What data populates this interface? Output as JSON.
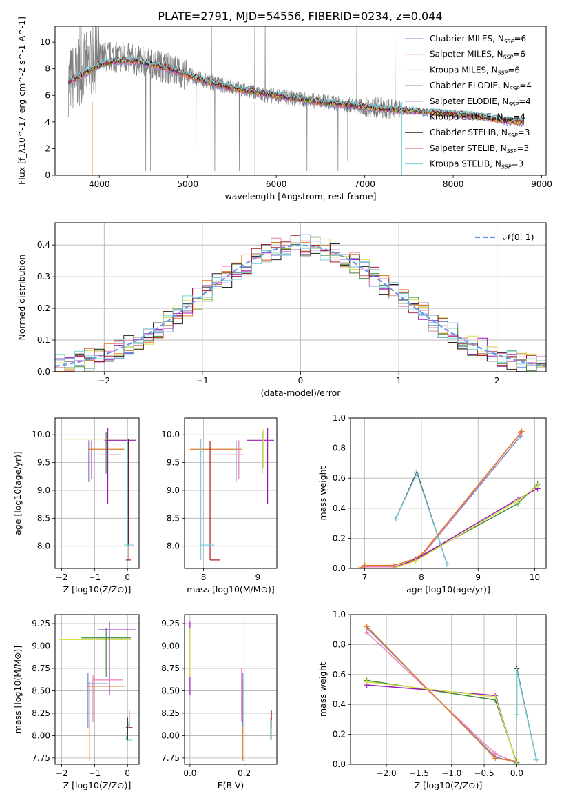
{
  "title": "PLATE=2791, MJD=54556, FIBERID=0234, z=0.044",
  "colors": {
    "model_colors": [
      "#6a8cd8",
      "#f07cb4",
      "#e07a22",
      "#3c8c3c",
      "#9a1bb8",
      "#d8e04a",
      "#222222",
      "#a81e1e",
      "#7ad0d8"
    ],
    "data": "#808080",
    "gaussian": "#6495ED",
    "grid": "#b0b0b0"
  },
  "legend": [
    {
      "name": "Chabrier MILES",
      "nssp": "6"
    },
    {
      "name": "Salpeter MILES",
      "nssp": "6"
    },
    {
      "name": "Kroupa MILES",
      "nssp": "6"
    },
    {
      "name": "Chabrier ELODIE",
      "nssp": "4"
    },
    {
      "name": "Salpeter ELODIE",
      "nssp": "4"
    },
    {
      "name": "Kroupa ELODIE",
      "nssp": "4"
    },
    {
      "name": "Chabrier STELIB",
      "nssp": "3"
    },
    {
      "name": "Salpeter STELIB",
      "nssp": "3"
    },
    {
      "name": "Kroupa STELIB",
      "nssp": "3"
    }
  ],
  "chart_data": [
    {
      "id": "spectrum",
      "type": "line",
      "xlabel": "wavelength [Angstrom, rest frame]",
      "ylabel": "Flux [f_λ10^-17 erg cm^-2 s^-1 A^-1]",
      "xlim": [
        3500,
        9050
      ],
      "ylim": [
        0,
        11.2
      ],
      "xticks": [
        4000,
        5000,
        6000,
        7000,
        8000,
        9000
      ],
      "yticks": [
        0,
        2,
        4,
        6,
        8,
        10
      ],
      "grid": false,
      "legend_position": "upper right",
      "spectrum_x": [
        3650,
        3750,
        3850,
        3950,
        4050,
        4150,
        4300,
        4500,
        4700,
        4900,
        5100,
        5300,
        5500,
        5700,
        5900,
        6100,
        6300,
        6500,
        6700,
        6900,
        7100,
        7300,
        7420
      ],
      "spectrum_y": [
        7.0,
        7.6,
        8.2,
        8.7,
        8.9,
        8.9,
        8.8,
        8.5,
        8.2,
        7.8,
        7.3,
        6.9,
        6.6,
        6.3,
        6.0,
        5.9,
        5.7,
        5.5,
        5.4,
        5.2,
        5.1,
        5.0,
        4.9
      ],
      "model_x": [
        3650,
        3800,
        4000,
        4200,
        4400,
        4600,
        4800,
        5000,
        5200,
        5400,
        5600,
        5800,
        6000,
        6200,
        6400,
        6600,
        6800,
        7000,
        7200,
        7400,
        7600,
        7800,
        8000,
        8200,
        8400,
        8600,
        8800
      ],
      "model_y": [
        7.0,
        7.5,
        8.3,
        8.6,
        8.6,
        8.3,
        8.0,
        7.5,
        7.1,
        6.7,
        6.4,
        6.2,
        6.0,
        5.8,
        5.6,
        5.4,
        5.3,
        5.1,
        5.0,
        4.9,
        4.8,
        4.7,
        4.6,
        4.5,
        4.3,
        4.1,
        4.0
      ]
    },
    {
      "id": "residuals",
      "type": "line",
      "xlabel": "(data-model)/error",
      "ylabel": "Normed distribution",
      "xlim": [
        -2.5,
        2.5
      ],
      "ylim": [
        0,
        0.47
      ],
      "xticks": [
        -2,
        -1,
        0,
        1,
        2
      ],
      "yticks": [
        0.0,
        0.1,
        0.2,
        0.3,
        0.4
      ],
      "grid": true,
      "legend_position": "upper right",
      "gaussian_label": "𝒩(0, 1)",
      "bin_width": 0.1
    },
    {
      "id": "age_vs_Z",
      "type": "scatter",
      "xlabel": "Z [log10(Z/Z⊙)]",
      "ylabel": "age  [log10(age/yr)]",
      "xlim": [
        -2.2,
        0.35
      ],
      "ylim": [
        7.6,
        10.3
      ],
      "xticks": [
        -2,
        -1,
        0
      ],
      "yticks": [
        8.0,
        8.5,
        9.0,
        9.5,
        10.0
      ],
      "grid": true,
      "segments": [
        {
          "c": 0,
          "x": [
            -1.18,
            -1.18
          ],
          "y": [
            9.15,
            9.9
          ]
        },
        {
          "c": 1,
          "x": [
            -1.1,
            -1.1
          ],
          "y": [
            9.2,
            9.9
          ]
        },
        {
          "c": 2,
          "x": [
            -1.2,
            -0.1
          ],
          "y": [
            9.74,
            9.74
          ]
        },
        {
          "c": 3,
          "x": [
            -0.65,
            -0.65
          ],
          "y": [
            9.3,
            10.05
          ]
        },
        {
          "c": 4,
          "x": [
            -0.6,
            -0.6
          ],
          "y": [
            8.75,
            10.12
          ]
        },
        {
          "c": 4,
          "x": [
            -0.7,
            0.25
          ],
          "y": [
            9.9,
            9.9
          ]
        },
        {
          "c": 5,
          "x": [
            -2.1,
            0.3
          ],
          "y": [
            9.92,
            9.92
          ]
        },
        {
          "c": 0,
          "x": [
            -0.7,
            -0.2
          ],
          "y": [
            9.64,
            9.64
          ]
        },
        {
          "c": 1,
          "x": [
            -0.85,
            -0.2
          ],
          "y": [
            9.64,
            9.64
          ]
        },
        {
          "c": 6,
          "x": [
            0.02,
            0.02
          ],
          "y": [
            8.0,
            9.92
          ]
        },
        {
          "c": 7,
          "x": [
            -0.05,
            0.1
          ],
          "y": [
            7.75,
            7.75
          ]
        },
        {
          "c": 7,
          "x": [
            0.04,
            0.04
          ],
          "y": [
            7.75,
            9.92
          ]
        },
        {
          "c": 8,
          "x": [
            0.0,
            0.0
          ],
          "y": [
            8.0,
            9.92
          ]
        },
        {
          "c": 8,
          "x": [
            -0.1,
            0.2
          ],
          "y": [
            8.02,
            8.02
          ]
        }
      ]
    },
    {
      "id": "age_vs_mass",
      "type": "scatter",
      "xlabel": "mass [log10(M/M⊙)]",
      "ylabel": "",
      "xlim": [
        7.65,
        9.35
      ],
      "ylim": [
        7.6,
        10.3
      ],
      "xticks": [
        8,
        9
      ],
      "yticks": [
        8.0,
        8.5,
        9.0,
        9.5,
        10.0
      ],
      "grid": true,
      "segments": [
        {
          "c": 2,
          "x": [
            7.75,
            8.7
          ],
          "y": [
            9.74,
            9.74
          ]
        },
        {
          "c": 7,
          "x": [
            8.12,
            8.12
          ],
          "y": [
            7.75,
            9.88
          ]
        },
        {
          "c": 7,
          "x": [
            8.12,
            8.3
          ],
          "y": [
            7.75,
            7.75
          ]
        },
        {
          "c": 8,
          "x": [
            7.95,
            7.95
          ],
          "y": [
            7.75,
            9.92
          ]
        },
        {
          "c": 8,
          "x": [
            7.95,
            8.2
          ],
          "y": [
            8.02,
            8.02
          ]
        },
        {
          "c": 1,
          "x": [
            8.15,
            8.75
          ],
          "y": [
            9.64,
            9.64
          ]
        },
        {
          "c": 0,
          "x": [
            8.6,
            8.6
          ],
          "y": [
            9.15,
            9.88
          ]
        },
        {
          "c": 1,
          "x": [
            8.65,
            8.65
          ],
          "y": [
            9.2,
            9.9
          ]
        },
        {
          "c": 4,
          "x": [
            8.8,
            9.3
          ],
          "y": [
            9.9,
            9.9
          ]
        },
        {
          "c": 4,
          "x": [
            9.18,
            9.18
          ],
          "y": [
            8.75,
            10.12
          ]
        },
        {
          "c": 3,
          "x": [
            9.08,
            9.08
          ],
          "y": [
            9.3,
            10.05
          ]
        },
        {
          "c": 5,
          "x": [
            9.1,
            9.1
          ],
          "y": [
            9.4,
            10.1
          ]
        }
      ]
    },
    {
      "id": "mass_weight_vs_age",
      "type": "line",
      "xlabel": "age  [log10(age/yr)]",
      "ylabel": "mass weight",
      "xlim": [
        6.75,
        10.2
      ],
      "ylim": [
        0,
        1.0
      ],
      "xticks": [
        7,
        8,
        9,
        10
      ],
      "yticks": [
        0.0,
        0.2,
        0.4,
        0.6,
        0.8,
        1.0
      ],
      "grid": true,
      "series": [
        {
          "c": 0,
          "x": [
            6.9,
            7.0,
            7.5,
            7.8,
            8.0,
            9.75
          ],
          "y": [
            0.0,
            0.01,
            0.01,
            0.04,
            0.08,
            0.88
          ]
        },
        {
          "c": 1,
          "x": [
            6.9,
            7.0,
            7.5,
            7.8,
            8.0,
            9.75
          ],
          "y": [
            0.0,
            0.01,
            0.01,
            0.04,
            0.08,
            0.9
          ]
        },
        {
          "c": 2,
          "x": [
            6.9,
            7.0,
            7.5,
            7.8,
            8.0,
            9.77
          ],
          "y": [
            0.0,
            0.02,
            0.02,
            0.05,
            0.09,
            0.91
          ]
        },
        {
          "c": 3,
          "x": [
            6.9,
            7.5,
            7.9,
            9.7,
            10.05
          ],
          "y": [
            0.0,
            0.0,
            0.06,
            0.43,
            0.56
          ]
        },
        {
          "c": 4,
          "x": [
            6.9,
            7.5,
            7.9,
            9.7,
            10.05
          ],
          "y": [
            0.0,
            0.0,
            0.06,
            0.46,
            0.53
          ]
        },
        {
          "c": 5,
          "x": [
            6.9,
            7.5,
            7.9,
            9.7,
            10.05
          ],
          "y": [
            0.0,
            0.0,
            0.05,
            0.45,
            0.55
          ]
        },
        {
          "c": 6,
          "x": [
            7.55,
            7.92,
            8.45
          ],
          "y": [
            0.33,
            0.64,
            0.03
          ]
        },
        {
          "c": 8,
          "x": [
            7.55,
            7.92,
            8.45
          ],
          "y": [
            0.33,
            0.63,
            0.03
          ]
        }
      ]
    },
    {
      "id": "mass_vs_Z",
      "type": "scatter",
      "xlabel": "Z [log10(Z/Z⊙)]",
      "ylabel": "mass [log10(M/M⊙)]",
      "xlim": [
        -2.2,
        0.35
      ],
      "ylim": [
        7.68,
        9.35
      ],
      "xticks": [
        -2,
        -1,
        0
      ],
      "yticks": [
        7.75,
        8.0,
        8.25,
        8.5,
        8.75,
        9.0,
        9.25
      ],
      "grid": true,
      "segments": [
        {
          "c": 5,
          "x": [
            -2.1,
            0.1
          ],
          "y": [
            9.07,
            9.07
          ]
        },
        {
          "c": 3,
          "x": [
            -1.4,
            0.1
          ],
          "y": [
            9.09,
            9.09
          ]
        },
        {
          "c": 4,
          "x": [
            -0.9,
            0.25
          ],
          "y": [
            9.18,
            9.18
          ]
        },
        {
          "c": 4,
          "x": [
            -0.55,
            -0.55
          ],
          "y": [
            8.45,
            9.27
          ]
        },
        {
          "c": 3,
          "x": [
            -0.65,
            -0.65
          ],
          "y": [
            8.65,
            9.2
          ]
        },
        {
          "c": 0,
          "x": [
            -1.25,
            -0.6
          ],
          "y": [
            8.58,
            8.58
          ]
        },
        {
          "c": 0,
          "x": [
            -1.2,
            -1.2
          ],
          "y": [
            8.08,
            8.7
          ]
        },
        {
          "c": 1,
          "x": [
            -1.05,
            -0.15
          ],
          "y": [
            8.62,
            8.62
          ]
        },
        {
          "c": 1,
          "x": [
            -1.05,
            -1.05
          ],
          "y": [
            8.15,
            8.68
          ]
        },
        {
          "c": 2,
          "x": [
            -1.25,
            -0.1
          ],
          "y": [
            8.55,
            8.55
          ]
        },
        {
          "c": 2,
          "x": [
            -1.15,
            -1.15
          ],
          "y": [
            7.72,
            8.6
          ]
        },
        {
          "c": 7,
          "x": [
            -0.05,
            0.15
          ],
          "y": [
            8.09,
            8.09
          ]
        },
        {
          "c": 7,
          "x": [
            0.05,
            0.05
          ],
          "y": [
            8.08,
            8.28
          ]
        },
        {
          "c": 8,
          "x": [
            -0.05,
            0.15
          ],
          "y": [
            7.95,
            7.95
          ]
        },
        {
          "c": 8,
          "x": [
            -0.05,
            0.05
          ],
          "y": [
            7.95,
            8.17
          ]
        },
        {
          "c": 6,
          "x": [
            0.0,
            0.0
          ],
          "y": [
            7.95,
            8.2
          ]
        }
      ]
    },
    {
      "id": "mass_vs_EBV",
      "type": "scatter",
      "xlabel": "E(B-V)",
      "ylabel": "",
      "xlim": [
        -0.02,
        0.32
      ],
      "ylim": [
        7.68,
        9.35
      ],
      "xticks": [
        0.0,
        0.2
      ],
      "yticks": [
        7.75,
        8.0,
        8.25,
        8.5,
        8.75,
        9.0,
        9.25
      ],
      "grid": true,
      "segments": [
        {
          "c": 4,
          "x": [
            0.0,
            0.0
          ],
          "y": [
            8.45,
            9.27
          ]
        },
        {
          "c": 5,
          "x": [
            0.0,
            0.0
          ],
          "y": [
            8.65,
            9.2
          ]
        },
        {
          "c": 1,
          "x": [
            0.19,
            0.19
          ],
          "y": [
            8.15,
            8.75
          ]
        },
        {
          "c": 2,
          "x": [
            0.195,
            0.195
          ],
          "y": [
            7.72,
            8.6
          ]
        },
        {
          "c": 0,
          "x": [
            0.195,
            0.195
          ],
          "y": [
            8.1,
            8.7
          ]
        },
        {
          "c": 7,
          "x": [
            0.3,
            0.3
          ],
          "y": [
            8.08,
            8.28
          ]
        },
        {
          "c": 8,
          "x": [
            0.3,
            0.3
          ],
          "y": [
            7.95,
            8.17
          ]
        },
        {
          "c": 6,
          "x": [
            0.298,
            0.298
          ],
          "y": [
            7.95,
            8.2
          ]
        }
      ]
    },
    {
      "id": "mass_weight_vs_Z",
      "type": "line",
      "xlabel": "Z [log10(Z/Z⊙)]",
      "ylabel": "mass weight",
      "xlim": [
        -2.55,
        0.45
      ],
      "ylim": [
        0,
        1.0
      ],
      "xticks": [
        -2.0,
        -1.5,
        -1.0,
        -0.5,
        0.0
      ],
      "yticks": [
        0.0,
        0.2,
        0.4,
        0.6,
        0.8,
        1.0
      ],
      "grid": true,
      "series": [
        {
          "c": 0,
          "x": [
            -2.3,
            -0.33,
            0.0
          ],
          "y": [
            0.91,
            0.05,
            0.01
          ]
        },
        {
          "c": 1,
          "x": [
            -2.3,
            -0.33,
            0.0
          ],
          "y": [
            0.88,
            0.07,
            0.01
          ]
        },
        {
          "c": 2,
          "x": [
            -2.3,
            -0.33,
            0.0
          ],
          "y": [
            0.92,
            0.04,
            0.02
          ]
        },
        {
          "c": 3,
          "x": [
            -2.3,
            -0.33,
            0.0
          ],
          "y": [
            0.56,
            0.43,
            0.01
          ]
        },
        {
          "c": 4,
          "x": [
            -2.3,
            -0.33,
            0.0
          ],
          "y": [
            0.53,
            0.46,
            0.0
          ]
        },
        {
          "c": 5,
          "x": [
            -2.3,
            -0.33,
            0.0
          ],
          "y": [
            0.55,
            0.45,
            0.0
          ]
        },
        {
          "c": 6,
          "x": [
            0.0,
            0.0,
            0.3
          ],
          "y": [
            0.33,
            0.64,
            0.03
          ]
        },
        {
          "c": 8,
          "x": [
            0.0,
            0.0,
            0.3
          ],
          "y": [
            0.33,
            0.63,
            0.03
          ]
        }
      ]
    }
  ]
}
